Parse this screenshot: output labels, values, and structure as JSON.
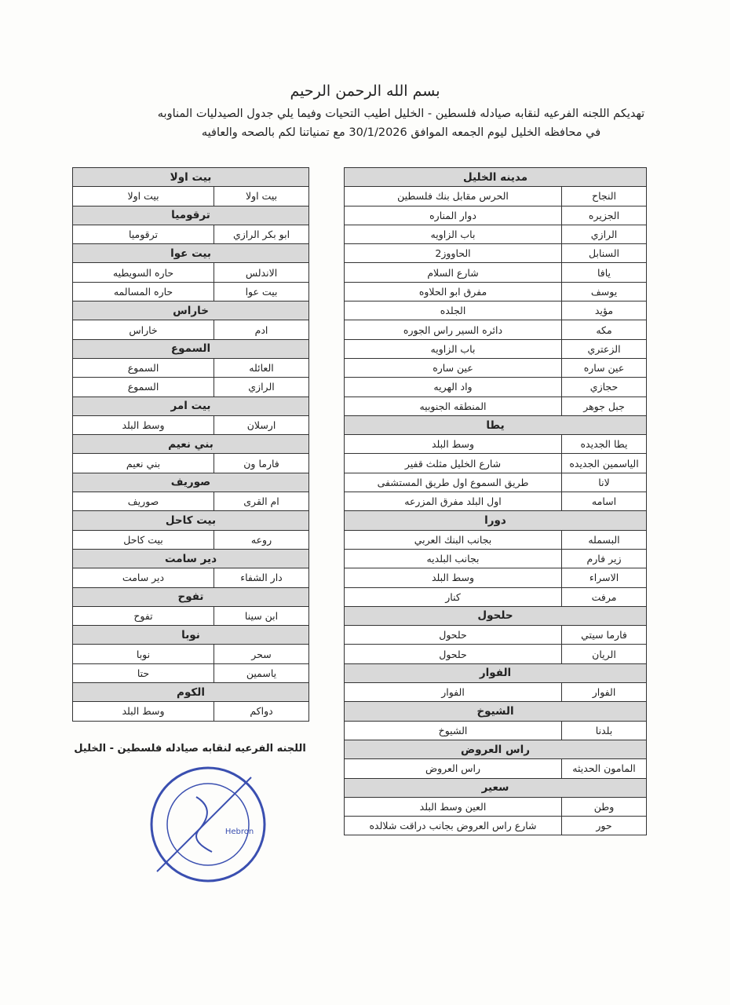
{
  "header": {
    "basmala": "بسم الله الرحمن الرحيم",
    "lines": [
      "تهديكم اللجنه الفرعيه لنقابه صيادله فلسطين - الخليل اطيب التحيات وفيما يلي جدول الصيدليات المناوبه",
      "في محافظه الخليل ليوم الجمعه الموافق 30/1/2026 مع تمنياتنا لكم بالصحه والعافيه"
    ]
  },
  "right_table": {
    "sections": [
      {
        "title": "مدينه الخليل",
        "rows": [
          [
            "النجاح",
            "الحرس مقابل بنك فلسطين"
          ],
          [
            "الجزيره",
            "دوار المناره"
          ],
          [
            "الرازي",
            "باب الزاويه"
          ],
          [
            "السنابل",
            "الحاووز2"
          ],
          [
            "يافا",
            "شارع السلام"
          ],
          [
            "يوسف",
            "مفرق ابو الحلاوه"
          ],
          [
            "مؤيد",
            "الجلده"
          ],
          [
            "مكه",
            "دائره السير راس الجوره"
          ],
          [
            "الزعتري",
            "باب الزاويه"
          ],
          [
            "عين ساره",
            "عين ساره"
          ],
          [
            "حجازي",
            "واد الهريه"
          ],
          [
            "جبل جوهر",
            "المنطقه الجنوبيه"
          ]
        ]
      },
      {
        "title": "يطا",
        "rows": [
          [
            "يطا الجديده",
            "وسط البلد"
          ],
          [
            "الياسمين الجديده",
            "شارع الخليل مثلث قفير"
          ],
          [
            "لانا",
            "طريق السموع اول طريق المستشفى"
          ],
          [
            "اسامه",
            "اول البلد مفرق المزرعه"
          ]
        ]
      },
      {
        "title": "دورا",
        "rows": [
          [
            "البسمله",
            "بجانب البنك العربي"
          ],
          [
            "زير فارم",
            "بجانب البلديه"
          ],
          [
            "الاسراء",
            "وسط البلد"
          ],
          [
            "مرفت",
            "كنار"
          ]
        ]
      },
      {
        "title": "حلحول",
        "rows": [
          [
            "فارما سيتي",
            "حلحول"
          ],
          [
            "الريان",
            "حلحول"
          ]
        ]
      },
      {
        "title": "الفوار",
        "rows": [
          [
            "الفوار",
            "الفوار"
          ]
        ]
      },
      {
        "title": "الشيوخ",
        "rows": [
          [
            "بلدنا",
            "الشيوخ"
          ]
        ]
      },
      {
        "title": "راس العروض",
        "rows": [
          [
            "المامون الحديثه",
            "راس العروض"
          ]
        ]
      },
      {
        "title": "سعير",
        "rows": [
          [
            "وطن",
            "العين وسط البلد"
          ],
          [
            "حور",
            "شارع راس العروض بجانب دراقت شلالده"
          ]
        ]
      }
    ]
  },
  "left_table": {
    "sections": [
      {
        "title": "بيت اولا",
        "rows": [
          [
            "بيت اولا",
            "بيت اولا"
          ]
        ]
      },
      {
        "title": "ترقوميا",
        "rows": [
          [
            "ابو بكر الرازي",
            "ترقوميا"
          ]
        ]
      },
      {
        "title": "بيت عوا",
        "rows": [
          [
            "الاندلس",
            "حاره السويطيه"
          ],
          [
            "بيت عوا",
            "حاره المسالمه"
          ]
        ]
      },
      {
        "title": "خاراس",
        "rows": [
          [
            "ادم",
            "خاراس"
          ]
        ]
      },
      {
        "title": "السموع",
        "rows": [
          [
            "العائله",
            "السموع"
          ],
          [
            "الرازي",
            "السموع"
          ]
        ]
      },
      {
        "title": "بيت امر",
        "rows": [
          [
            "ارسلان",
            "وسط البلد"
          ]
        ]
      },
      {
        "title": "بني نعيم",
        "rows": [
          [
            "فارما ون",
            "بني نعيم"
          ]
        ]
      },
      {
        "title": "صوريف",
        "rows": [
          [
            "ام القرى",
            "صوريف"
          ]
        ]
      },
      {
        "title": "بيت كاحل",
        "rows": [
          [
            "روعه",
            "بيت كاحل"
          ]
        ]
      },
      {
        "title": "دير سامت",
        "rows": [
          [
            "دار الشفاء",
            "دير سامت"
          ]
        ]
      },
      {
        "title": "تفوح",
        "rows": [
          [
            "ابن سينا",
            "تفوح"
          ]
        ]
      },
      {
        "title": "نوبا",
        "rows": [
          [
            "سحر",
            "نوبا"
          ],
          [
            "ياسمين",
            "حتا"
          ]
        ]
      },
      {
        "title": "الكوم",
        "rows": [
          [
            "دواكم",
            "وسط البلد"
          ]
        ]
      }
    ]
  },
  "footer": {
    "signature": "اللجنه الفرعيه لنقابه صيادله فلسطين - الخليل"
  },
  "stamp": {
    "label": "Hebron"
  }
}
